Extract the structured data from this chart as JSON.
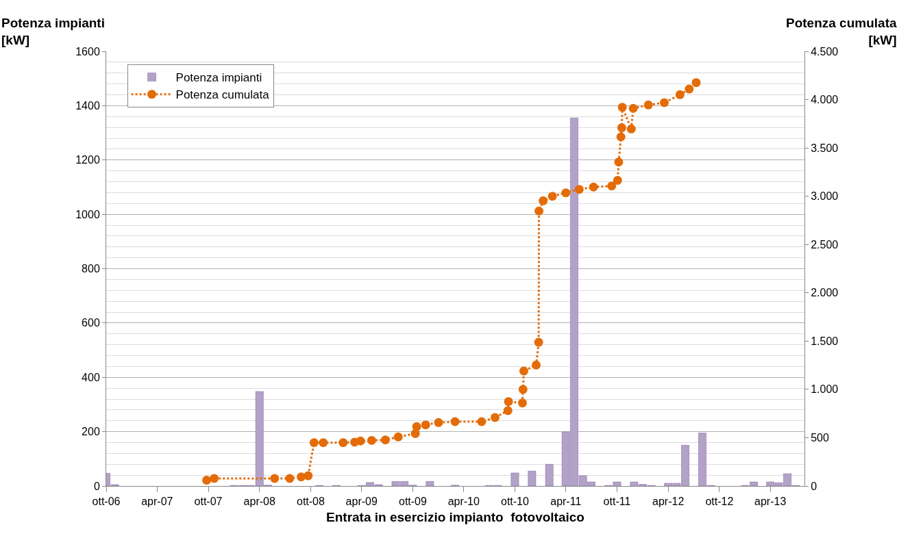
{
  "chart_data": {
    "type": "bar",
    "xlabel": "Entrata in esercizio impianto  fotovoltaico",
    "ylabel": "Potenza impianti\n[kW]",
    "y2label": "Potenza cumulata\n[kW]",
    "xlim": [
      "2006-10-01",
      "2013-08-01"
    ],
    "xticks": [
      {
        "value": "2006-10-01",
        "label": "ott-06"
      },
      {
        "value": "2007-04-01",
        "label": "apr-07"
      },
      {
        "value": "2007-10-01",
        "label": "ott-07"
      },
      {
        "value": "2008-04-01",
        "label": "apr-08"
      },
      {
        "value": "2008-10-01",
        "label": "ott-08"
      },
      {
        "value": "2009-04-01",
        "label": "apr-09"
      },
      {
        "value": "2009-10-01",
        "label": "ott-09"
      },
      {
        "value": "2010-04-01",
        "label": "apr-10"
      },
      {
        "value": "2010-10-01",
        "label": "ott-10"
      },
      {
        "value": "2011-04-01",
        "label": "apr-11"
      },
      {
        "value": "2011-10-01",
        "label": "ott-11"
      },
      {
        "value": "2012-04-01",
        "label": "apr-12"
      },
      {
        "value": "2012-10-01",
        "label": "ott-12"
      },
      {
        "value": "2013-04-01",
        "label": "apr-13"
      }
    ],
    "ylim": [
      0,
      1600
    ],
    "yticks": [
      0,
      200,
      400,
      600,
      800,
      1000,
      1200,
      1400,
      1600
    ],
    "y2lim": [
      0,
      4500
    ],
    "y2ticks": [
      {
        "value": 0,
        "label": "0"
      },
      {
        "value": 500,
        "label": "500"
      },
      {
        "value": 1000,
        "label": "1.000"
      },
      {
        "value": 1500,
        "label": "1.500"
      },
      {
        "value": 2000,
        "label": "2.000"
      },
      {
        "value": 2500,
        "label": "2.500"
      },
      {
        "value": 3000,
        "label": "3.000"
      },
      {
        "value": 3500,
        "label": "3.500"
      },
      {
        "value": 4000,
        "label": "4.000"
      },
      {
        "value": 4500,
        "label": "4.500"
      }
    ],
    "grid": "y",
    "legend": "top left",
    "series": [
      {
        "name": "Potenza impianti",
        "color": "#b3a2c7",
        "x": [
          "2006-10",
          "2006-11",
          "2008-01",
          "2008-02",
          "2008-03",
          "2008-04",
          "2008-05",
          "2008-11",
          "2009-01",
          "2009-04",
          "2009-05",
          "2009-06",
          "2009-08",
          "2009-09",
          "2009-10",
          "2009-12",
          "2010-03",
          "2010-07",
          "2010-08",
          "2010-10",
          "2010-12",
          "2011-02",
          "2011-04",
          "2011-05",
          "2011-06",
          "2011-07",
          "2011-09",
          "2011-10",
          "2011-12",
          "2012-01",
          "2012-02",
          "2012-04",
          "2012-05",
          "2012-06",
          "2012-08",
          "2012-09",
          "2013-01",
          "2013-02",
          "2013-04",
          "2013-05",
          "2013-06",
          "2013-07"
        ],
        "values": [
          47,
          5,
          2,
          2,
          2,
          348,
          3,
          2,
          2,
          2,
          13,
          5,
          17,
          17,
          3,
          17,
          3,
          2,
          2,
          48,
          55,
          80,
          199,
          1355,
          38,
          15,
          2,
          15,
          15,
          6,
          2,
          10,
          10,
          150,
          195,
          2,
          2,
          15,
          15,
          12,
          45,
          2
        ]
      },
      {
        "name": "Potenza cumulata",
        "type": "line",
        "axis": "y2",
        "color": "#e36c09",
        "marker": "circle",
        "line_style": "dotted",
        "x": [
          "2007-09-25",
          "2007-10-22",
          "2008-05-25",
          "2008-07-18",
          "2008-08-28",
          "2008-09-22",
          "2008-10-13",
          "2008-11-15",
          "2009-01-25",
          "2009-03-07",
          "2009-03-28",
          "2009-05-07",
          "2009-06-25",
          "2009-08-10",
          "2009-10-10",
          "2009-10-15",
          "2009-11-16",
          "2010-01-01",
          "2010-03-01",
          "2010-06-04",
          "2010-07-22",
          "2010-09-06",
          "2010-09-08",
          "2010-10-28",
          "2010-10-30",
          "2010-11-02",
          "2010-12-16",
          "2010-12-25",
          "2010-12-26",
          "2011-01-10",
          "2011-02-12",
          "2011-04-01",
          "2011-05-19",
          "2011-07-09",
          "2011-09-12",
          "2011-10-03",
          "2011-10-07",
          "2011-10-15",
          "2011-10-18",
          "2011-10-20",
          "2011-11-21",
          "2011-11-28",
          "2012-01-21",
          "2012-03-18",
          "2012-05-13",
          "2012-06-15",
          "2012-07-10"
        ],
        "values": [
          60,
          78,
          78,
          78,
          94,
          106,
          449,
          449,
          449,
          454,
          466,
          472,
          477,
          508,
          543,
          614,
          633,
          657,
          666,
          666,
          709,
          780,
          874,
          860,
          1000,
          1190,
          1252,
          1488,
          2847,
          2953,
          3000,
          3035,
          3071,
          3095,
          3106,
          3165,
          3354,
          3614,
          3709,
          3921,
          3697,
          3910,
          3945,
          3969,
          4051,
          4110,
          4176
        ]
      }
    ]
  }
}
